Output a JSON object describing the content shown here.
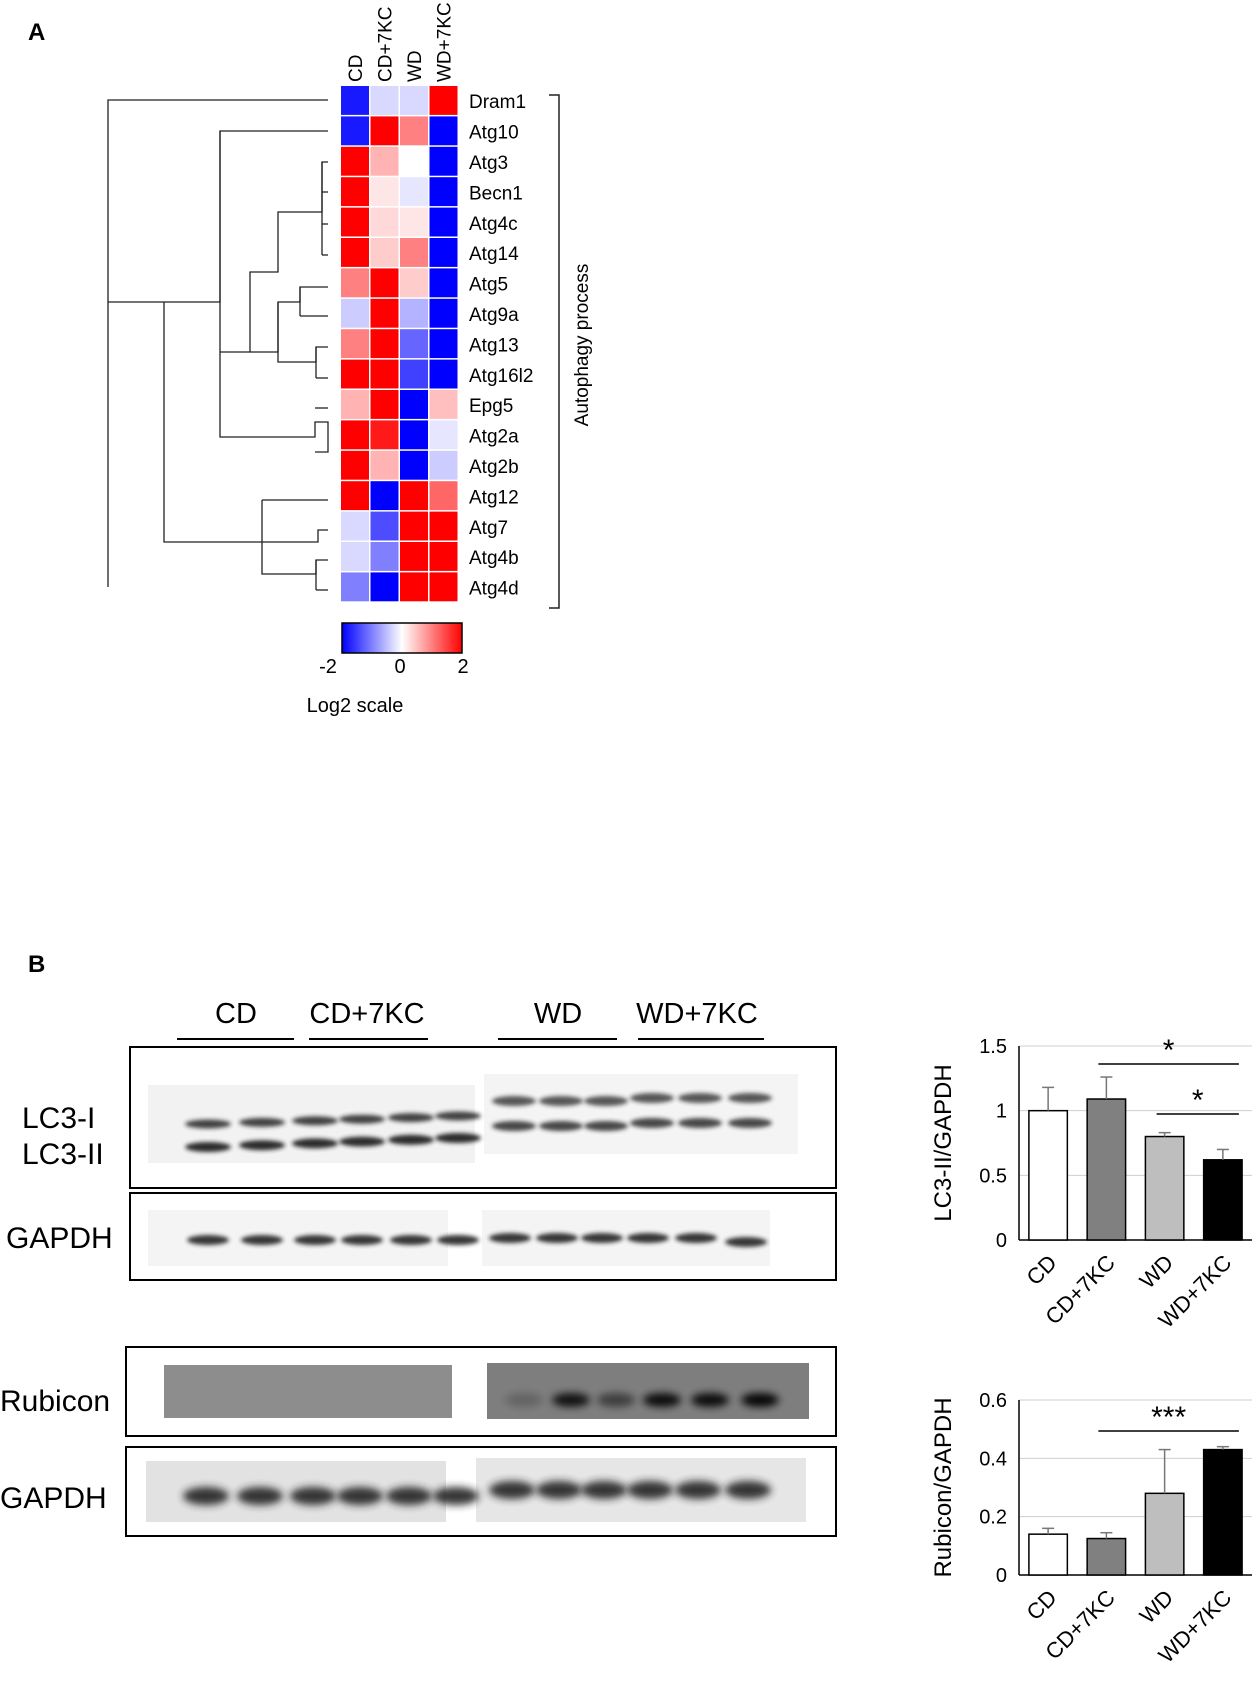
{
  "panels": {
    "a": "A",
    "b": "B"
  },
  "heatmap": {
    "columns": [
      "CD",
      "CD+7KC",
      "WD",
      "WD+7KC"
    ],
    "genes": [
      "Dram1",
      "Atg10",
      "Atg3",
      "Becn1",
      "Atg4c",
      "Atg14",
      "Atg5",
      "Atg9a",
      "Atg13",
      "Atg16l2",
      "Epg5",
      "Atg2a",
      "Atg2b",
      "Atg12",
      "Atg7",
      "Atg4b",
      "Atg4d"
    ],
    "values": [
      [
        -1.8,
        -0.3,
        -0.3,
        2.0
      ],
      [
        -1.8,
        2.0,
        1.0,
        -2.0
      ],
      [
        2.0,
        0.6,
        0.0,
        -2.0
      ],
      [
        2.0,
        0.2,
        -0.2,
        -2.0
      ],
      [
        2.0,
        0.3,
        0.2,
        -2.0
      ],
      [
        2.0,
        0.4,
        1.0,
        -2.0
      ],
      [
        1.0,
        2.0,
        0.4,
        -2.0
      ],
      [
        -0.4,
        2.0,
        -0.6,
        -2.0
      ],
      [
        1.0,
        2.0,
        -1.2,
        -2.0
      ],
      [
        2.0,
        2.0,
        -1.5,
        -2.0
      ],
      [
        0.6,
        2.0,
        -2.0,
        0.5
      ],
      [
        2.0,
        1.8,
        -2.0,
        -0.2
      ],
      [
        2.0,
        0.6,
        -2.0,
        -0.4
      ],
      [
        2.0,
        -2.0,
        2.0,
        1.2
      ],
      [
        -0.3,
        -1.4,
        2.0,
        2.0
      ],
      [
        -0.3,
        -1.0,
        2.0,
        2.0
      ],
      [
        -1.0,
        -2.0,
        2.0,
        2.0
      ]
    ],
    "group_label": "Autophagy process",
    "scale": {
      "min_label": "-2",
      "mid_label": "0",
      "max_label": "2",
      "title": "Log2 scale"
    },
    "colors": {
      "low": "#0000ff",
      "mid": "#ffffff",
      "high": "#ff0000"
    }
  },
  "blots": {
    "groups": [
      "CD",
      "CD+7KC",
      "WD",
      "WD+7KC"
    ],
    "lc3_labels": [
      "LC3-I",
      "LC3-II"
    ],
    "gapdh_label": "GAPDH",
    "rubicon_label": "Rubicon"
  },
  "chart_data": [
    {
      "type": "heatmap",
      "x": [
        "CD",
        "CD+7KC",
        "WD",
        "WD+7KC"
      ],
      "y": [
        "Dram1",
        "Atg10",
        "Atg3",
        "Becn1",
        "Atg4c",
        "Atg14",
        "Atg5",
        "Atg9a",
        "Atg13",
        "Atg16l2",
        "Epg5",
        "Atg2a",
        "Atg2b",
        "Atg12",
        "Atg7",
        "Atg4b",
        "Atg4d"
      ],
      "zlim": [
        -2,
        2
      ],
      "colorbar_label": "Log2 scale"
    },
    {
      "type": "bar",
      "categories": [
        "CD",
        "CD+7KC",
        "WD",
        "WD+7KC"
      ],
      "values": [
        1.0,
        1.09,
        0.8,
        0.62
      ],
      "errors": [
        0.18,
        0.17,
        0.03,
        0.08
      ],
      "colors": [
        "#ffffff",
        "#808080",
        "#bebebe",
        "#000000"
      ],
      "ylabel": "LC3-II/GAPDH",
      "ylim": [
        0,
        1.5
      ],
      "yticks": [
        "0",
        "0.5",
        "1",
        "1.5"
      ],
      "significance": [
        {
          "from": "CD+7KC",
          "to": "WD+7KC",
          "label": "*"
        },
        {
          "from": "WD",
          "to": "WD+7KC",
          "label": "*"
        }
      ],
      "grid": true
    },
    {
      "type": "bar",
      "categories": [
        "CD",
        "CD+7KC",
        "WD",
        "WD+7KC"
      ],
      "values": [
        0.14,
        0.125,
        0.28,
        0.43
      ],
      "errors": [
        0.02,
        0.02,
        0.15,
        0.01
      ],
      "colors": [
        "#ffffff",
        "#808080",
        "#bebebe",
        "#000000"
      ],
      "ylabel": "Rubicon/GAPDH",
      "ylim": [
        0,
        0.6
      ],
      "yticks": [
        "0",
        "0.2",
        "0.4",
        "0.6"
      ],
      "significance": [
        {
          "from": "CD+7KC",
          "to": "WD+7KC",
          "label": "***"
        }
      ],
      "grid": true
    }
  ]
}
